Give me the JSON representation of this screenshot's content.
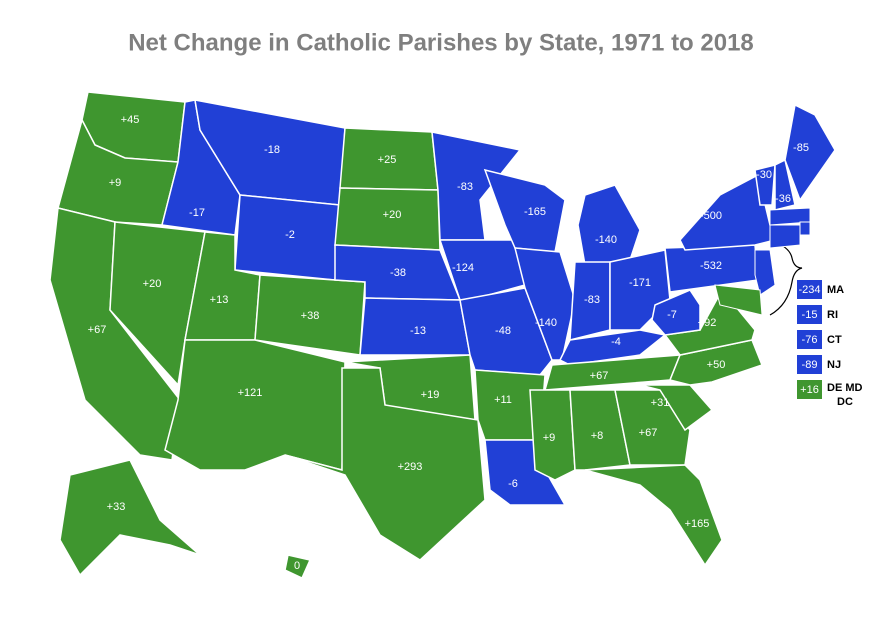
{
  "title": "Net Change in Catholic Parishes by State, 1971 to 2018",
  "colors": {
    "gain": "#3f962f",
    "loss": "#2140d6"
  },
  "regions": [
    {
      "label": "+45",
      "color": "#3f962f"
    },
    {
      "label": "+9",
      "color": "#3f962f"
    },
    {
      "label": "+67",
      "color": "#3f962f"
    },
    {
      "label": "+20",
      "color": "#3f962f"
    },
    {
      "label": "-17",
      "color": "#2140d6"
    },
    {
      "label": "-18",
      "color": "#2140d6"
    },
    {
      "label": "-2",
      "color": "#2140d6"
    },
    {
      "label": "+13",
      "color": "#3f962f"
    },
    {
      "label": "+38",
      "color": "#3f962f"
    },
    {
      "label": "+121",
      "color": "#3f962f"
    },
    {
      "label": "+25",
      "color": "#3f962f"
    },
    {
      "label": "+20",
      "color": "#3f962f"
    },
    {
      "label": "-38",
      "color": "#2140d6"
    },
    {
      "label": "-13",
      "color": "#2140d6"
    },
    {
      "label": "+19",
      "color": "#3f962f"
    },
    {
      "label": "+293",
      "color": "#3f962f"
    },
    {
      "label": "-83",
      "color": "#2140d6"
    },
    {
      "label": "-124",
      "color": "#2140d6"
    },
    {
      "label": "-48",
      "color": "#2140d6"
    },
    {
      "label": "+11",
      "color": "#3f962f"
    },
    {
      "label": "-6",
      "color": "#2140d6"
    },
    {
      "label": "-165",
      "color": "#2140d6"
    },
    {
      "label": "-140",
      "color": "#2140d6"
    },
    {
      "label": "-140",
      "color": "#2140d6"
    },
    {
      "label": "-83",
      "color": "#2140d6"
    },
    {
      "label": "-171",
      "color": "#2140d6"
    },
    {
      "label": "-4",
      "color": "#2140d6"
    },
    {
      "label": "+67",
      "color": "#3f962f"
    },
    {
      "label": "+9",
      "color": "#3f962f"
    },
    {
      "label": "+8",
      "color": "#3f962f"
    },
    {
      "label": "+67",
      "color": "#3f962f"
    },
    {
      "label": "+165",
      "color": "#3f962f"
    },
    {
      "label": "+31",
      "color": "#3f962f"
    },
    {
      "label": "+50",
      "color": "#3f962f"
    },
    {
      "label": "+92",
      "color": "#3f962f"
    },
    {
      "label": "-7",
      "color": "#2140d6"
    },
    {
      "label": "-532",
      "color": "#2140d6"
    },
    {
      "label": "-500",
      "color": "#2140d6"
    },
    {
      "label": "-30",
      "color": "#2140d6"
    },
    {
      "label": "-36",
      "color": "#2140d6"
    },
    {
      "label": "-85",
      "color": "#2140d6"
    },
    {
      "label": "+33",
      "color": "#3f962f"
    },
    {
      "label": "0",
      "color": "#3f962f"
    }
  ],
  "inset": [
    {
      "name": "MA",
      "label": "-234",
      "color": "#2140d6"
    },
    {
      "name": "RI",
      "label": "-15",
      "color": "#2140d6"
    },
    {
      "name": "CT",
      "label": "-76",
      "color": "#2140d6"
    },
    {
      "name": "NJ",
      "label": "-89",
      "color": "#2140d6"
    },
    {
      "name": "DE MD DC",
      "label": "+16",
      "color": "#3f962f"
    }
  ]
}
